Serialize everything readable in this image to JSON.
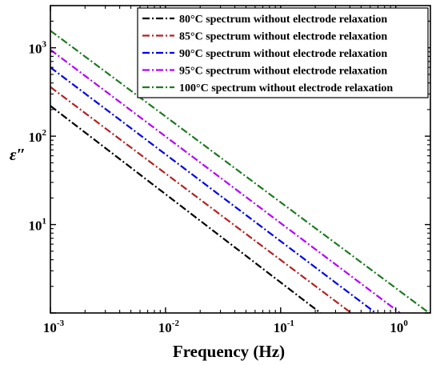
{
  "chart_data": {
    "type": "line",
    "xlabel": "Frequency (Hz)",
    "ylabel": "ε″",
    "x_scale": "log",
    "y_scale": "log",
    "xlim": [
      0.001,
      2.0
    ],
    "ylim": [
      1.0,
      3000
    ],
    "x_ticks": [
      {
        "value": 0.001,
        "base": "10",
        "exp": "-3"
      },
      {
        "value": 0.01,
        "base": "10",
        "exp": "-2"
      },
      {
        "value": 0.1,
        "base": "10",
        "exp": "-1"
      },
      {
        "value": 1,
        "base": "10",
        "exp": "0"
      }
    ],
    "y_ticks": [
      {
        "value": 10,
        "base": "10",
        "exp": "1"
      },
      {
        "value": 100,
        "base": "10",
        "exp": "2"
      },
      {
        "value": 1000,
        "base": "10",
        "exp": "3"
      }
    ],
    "grid": false,
    "legend_position": "top-right",
    "series": [
      {
        "name": "80°C  spectrum without electrode relaxation",
        "color": "#000000",
        "x": [
          0.001,
          0.222
        ],
        "y": [
          220,
          1.0
        ]
      },
      {
        "name": "85°C spectrum without electrode relaxation",
        "color": "#b22222",
        "x": [
          0.001,
          0.41
        ],
        "y": [
          360,
          1.0
        ]
      },
      {
        "name": "90°C spectrum without electrode relaxation",
        "color": "#0000ee",
        "x": [
          0.001,
          0.67
        ],
        "y": [
          600,
          1.0
        ]
      },
      {
        "name": "95°C spectrum without electrode relaxation",
        "color": "#b300ff",
        "x": [
          0.001,
          1.09
        ],
        "y": [
          950,
          1.0
        ]
      },
      {
        "name": "100°C spectrum without electrode relaxation",
        "color": "#1f7a1f",
        "x": [
          0.001,
          1.95
        ],
        "y": [
          1560,
          1.0
        ]
      }
    ]
  }
}
